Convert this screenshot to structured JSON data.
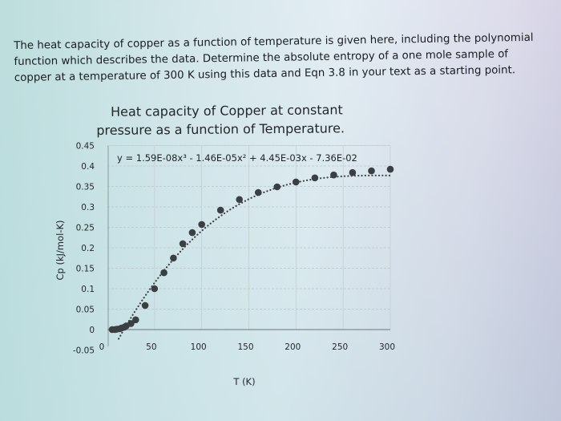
{
  "question": {
    "lines": [
      "The heat capacity of copper as a function of temperature is given here, including the polynomial",
      "function which describes the data. Determine the absolute entropy of a one mole sample of",
      "copper at a temperature of 300 K using this data and Eqn 3.8 in your text as a starting point."
    ]
  },
  "chart_data": {
    "type": "scatter",
    "title": "Heat capacity of Copper at constant pressure as a function of Temperature.",
    "title_lines": [
      "Heat capacity of Copper at constant",
      "pressure as a function of Temperature."
    ],
    "xlabel": "T (K)",
    "ylabel": "Cp (kJ/mol-K)",
    "xlim": [
      0,
      300
    ],
    "ylim": [
      -0.05,
      0.45
    ],
    "x_ticks": [
      0,
      50,
      100,
      150,
      200,
      250,
      300
    ],
    "y_ticks": [
      -0.05,
      0,
      0.05,
      0.1,
      0.15,
      0.2,
      0.25,
      0.3,
      0.35,
      0.4,
      0.45
    ],
    "y_tick_labels": [
      "-0.05",
      "0",
      "0.05",
      "0.1",
      "0.15",
      "0.2",
      "0.25",
      "0.3",
      "0.35",
      "0.4",
      "0.45"
    ],
    "grid": true,
    "legend": "none",
    "trendline": {
      "type": "polynomial",
      "order": 3,
      "style": "dotted",
      "equation": "y = 1.59E-08x³ - 1.46E-05x² + 4.45E-03x - 7.36E-02",
      "coefficients": [
        1.59e-08,
        -1.46e-05,
        0.00445,
        -0.0736
      ]
    },
    "series": [
      {
        "name": "Cp",
        "marker_color": "#3a3f44",
        "x": [
          5,
          8,
          10,
          13,
          15,
          18,
          20,
          25,
          30,
          40,
          50,
          60,
          70,
          80,
          90,
          100,
          120,
          140,
          160,
          180,
          200,
          220,
          240,
          260,
          280,
          300
        ],
        "y": [
          0.0,
          0.0,
          0.001,
          0.002,
          0.004,
          0.006,
          0.009,
          0.015,
          0.024,
          0.059,
          0.1,
          0.139,
          0.175,
          0.21,
          0.237,
          0.257,
          0.292,
          0.318,
          0.335,
          0.349,
          0.361,
          0.371,
          0.378,
          0.384,
          0.388,
          0.392
        ]
      }
    ]
  }
}
